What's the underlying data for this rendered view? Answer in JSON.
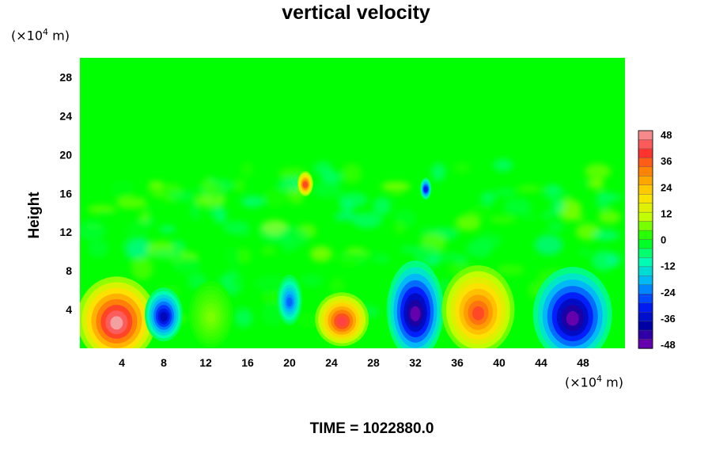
{
  "chart_data": {
    "type": "heatmap",
    "title": "vertical velocity",
    "ylabel": "Height",
    "xlabel": "",
    "x_unit_prefix": "(×10",
    "x_unit_exp": "4",
    "x_unit_suffix": " m)",
    "y_unit_prefix": "(×10",
    "y_unit_exp": "4",
    "y_unit_suffix": " m)",
    "xlim": [
      0,
      52
    ],
    "ylim": [
      0,
      30
    ],
    "x_ticks": [
      "4",
      "8",
      "12",
      "16",
      "20",
      "24",
      "28",
      "32",
      "36",
      "40",
      "44",
      "48"
    ],
    "y_ticks": [
      "4",
      "8",
      "12",
      "16",
      "20",
      "24",
      "28"
    ],
    "colorbar": {
      "range": [
        -48,
        48
      ],
      "tick_labels": [
        "48",
        "36",
        "24",
        "12",
        "0",
        "-12",
        "-24",
        "-36",
        "-48"
      ],
      "colors": [
        "#f4a0a0",
        "#ff3030",
        "#ff9000",
        "#ffe000",
        "#c0ff00",
        "#00ff00",
        "#00ffb0",
        "#00b0ff",
        "#0020ff",
        "#0000a0",
        "#8000b0"
      ]
    },
    "cells": [
      {
        "x": 3.5,
        "y": 3.0,
        "value": 48
      },
      {
        "x": 8.0,
        "y": 3.5,
        "value": -36
      },
      {
        "x": 12.5,
        "y": 3.5,
        "value": 6
      },
      {
        "x": 20.0,
        "y": 5.0,
        "value": -24
      },
      {
        "x": 25.0,
        "y": 3.0,
        "value": 40
      },
      {
        "x": 32.0,
        "y": 4.0,
        "value": -46
      },
      {
        "x": 38.0,
        "y": 4.0,
        "value": 36
      },
      {
        "x": 47.0,
        "y": 3.5,
        "value": -46
      },
      {
        "x": 21.5,
        "y": 17.0,
        "value": 36
      },
      {
        "x": 33.0,
        "y": 16.5,
        "value": -30
      }
    ]
  },
  "time_label": "TIME = 1022880.0"
}
